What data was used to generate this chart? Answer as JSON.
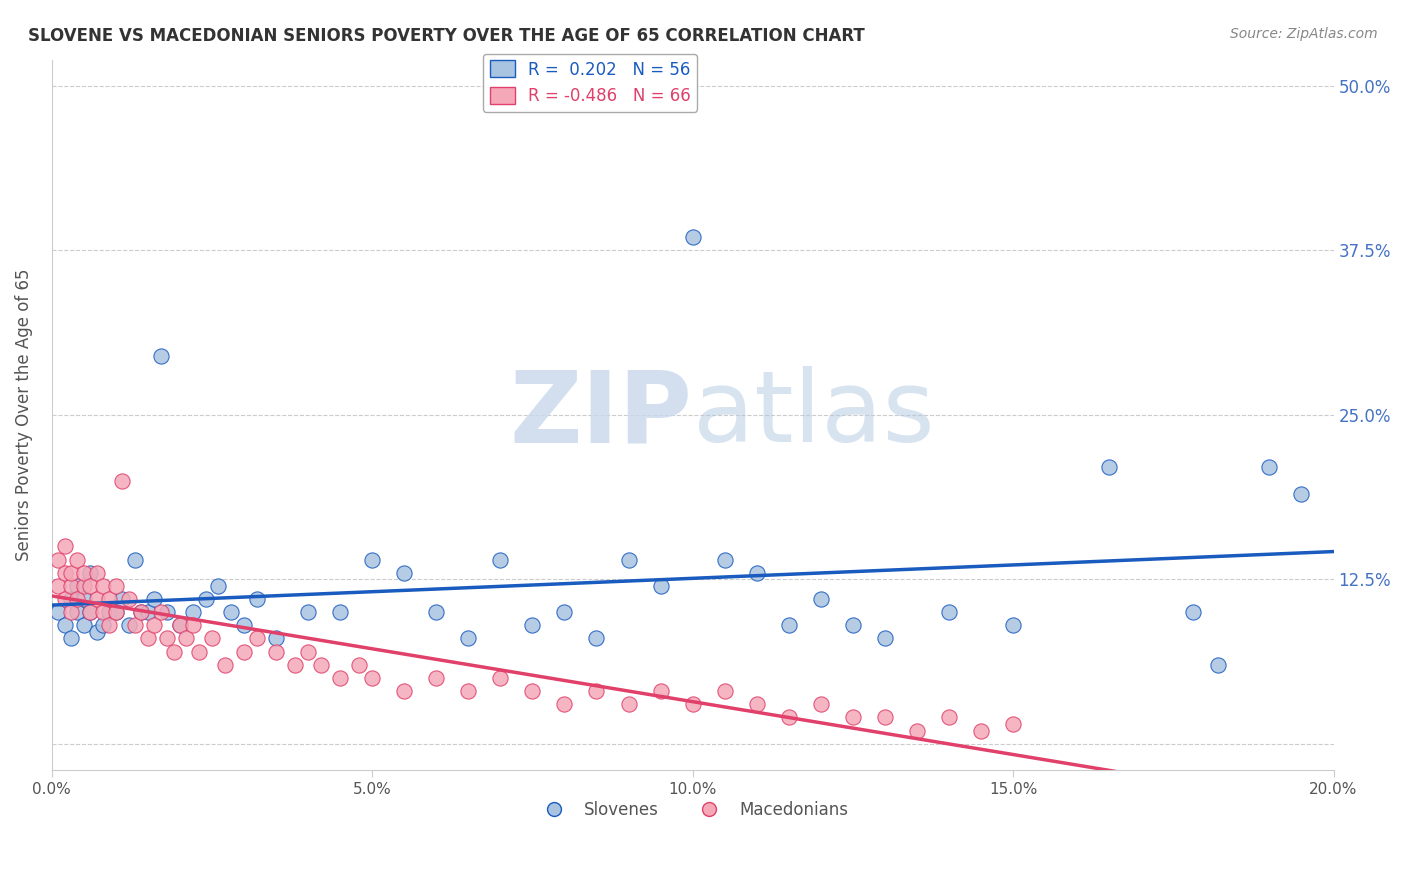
{
  "title": "SLOVENE VS MACEDONIAN SENIORS POVERTY OVER THE AGE OF 65 CORRELATION CHART",
  "source": "Source: ZipAtlas.com",
  "ylabel": "Seniors Poverty Over the Age of 65",
  "xlim": [
    0.0,
    0.2
  ],
  "ylim": [
    -0.02,
    0.52
  ],
  "xticks": [
    0.0,
    0.05,
    0.1,
    0.15,
    0.2
  ],
  "xtick_labels": [
    "0.0%",
    "5.0%",
    "10.0%",
    "15.0%",
    "20.0%"
  ],
  "yticks": [
    0.0,
    0.125,
    0.25,
    0.375,
    0.5
  ],
  "ytick_labels": [
    "",
    "12.5%",
    "25.0%",
    "37.5%",
    "50.0%"
  ],
  "legend_R_slovene": "0.202",
  "legend_N_slovene": "56",
  "legend_R_macedonian": "-0.486",
  "legend_N_macedonian": "66",
  "slovene_color": "#a8c4e0",
  "macedonian_color": "#f4a8b8",
  "slovene_line_color": "#1a5bbf",
  "macedonian_line_color": "#e0406a",
  "background_color": "#ffffff",
  "grid_color": "#cccccc",
  "title_color": "#333333",
  "right_ytick_color": "#4472c4",
  "slovenes_x": [
    0.001,
    0.002,
    0.003,
    0.003,
    0.004,
    0.004,
    0.005,
    0.005,
    0.006,
    0.006,
    0.007,
    0.008,
    0.009,
    0.01,
    0.011,
    0.012,
    0.013,
    0.014,
    0.015,
    0.016,
    0.017,
    0.018,
    0.02,
    0.022,
    0.024,
    0.026,
    0.028,
    0.03,
    0.032,
    0.035,
    0.04,
    0.045,
    0.05,
    0.055,
    0.06,
    0.065,
    0.07,
    0.075,
    0.08,
    0.085,
    0.09,
    0.095,
    0.1,
    0.105,
    0.11,
    0.115,
    0.12,
    0.125,
    0.13,
    0.14,
    0.15,
    0.165,
    0.178,
    0.182,
    0.19,
    0.195
  ],
  "slovenes_y": [
    0.1,
    0.09,
    0.11,
    0.08,
    0.1,
    0.12,
    0.09,
    0.11,
    0.1,
    0.13,
    0.085,
    0.09,
    0.1,
    0.1,
    0.11,
    0.09,
    0.14,
    0.1,
    0.1,
    0.11,
    0.295,
    0.1,
    0.09,
    0.1,
    0.11,
    0.12,
    0.1,
    0.09,
    0.11,
    0.08,
    0.1,
    0.1,
    0.14,
    0.13,
    0.1,
    0.08,
    0.14,
    0.09,
    0.1,
    0.08,
    0.14,
    0.12,
    0.385,
    0.14,
    0.13,
    0.09,
    0.11,
    0.09,
    0.08,
    0.1,
    0.09,
    0.21,
    0.1,
    0.06,
    0.21,
    0.19
  ],
  "macedonians_x": [
    0.001,
    0.001,
    0.002,
    0.002,
    0.002,
    0.003,
    0.003,
    0.003,
    0.004,
    0.004,
    0.005,
    0.005,
    0.006,
    0.006,
    0.007,
    0.007,
    0.008,
    0.008,
    0.009,
    0.009,
    0.01,
    0.01,
    0.011,
    0.012,
    0.013,
    0.014,
    0.015,
    0.016,
    0.017,
    0.018,
    0.019,
    0.02,
    0.021,
    0.022,
    0.023,
    0.025,
    0.027,
    0.03,
    0.032,
    0.035,
    0.038,
    0.04,
    0.042,
    0.045,
    0.048,
    0.05,
    0.055,
    0.06,
    0.065,
    0.07,
    0.075,
    0.08,
    0.085,
    0.09,
    0.095,
    0.1,
    0.105,
    0.11,
    0.115,
    0.12,
    0.125,
    0.13,
    0.135,
    0.14,
    0.145,
    0.15
  ],
  "macedonians_y": [
    0.14,
    0.12,
    0.13,
    0.11,
    0.15,
    0.12,
    0.1,
    0.13,
    0.11,
    0.14,
    0.12,
    0.13,
    0.1,
    0.12,
    0.11,
    0.13,
    0.1,
    0.12,
    0.09,
    0.11,
    0.1,
    0.12,
    0.2,
    0.11,
    0.09,
    0.1,
    0.08,
    0.09,
    0.1,
    0.08,
    0.07,
    0.09,
    0.08,
    0.09,
    0.07,
    0.08,
    0.06,
    0.07,
    0.08,
    0.07,
    0.06,
    0.07,
    0.06,
    0.05,
    0.06,
    0.05,
    0.04,
    0.05,
    0.04,
    0.05,
    0.04,
    0.03,
    0.04,
    0.03,
    0.04,
    0.03,
    0.04,
    0.03,
    0.02,
    0.03,
    0.02,
    0.02,
    0.01,
    0.02,
    0.01,
    0.015
  ]
}
